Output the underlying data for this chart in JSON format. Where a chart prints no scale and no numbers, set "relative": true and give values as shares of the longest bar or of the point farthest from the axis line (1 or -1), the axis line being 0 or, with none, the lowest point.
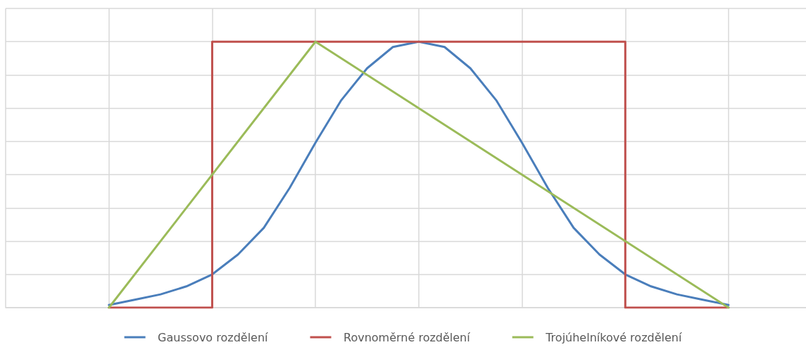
{
  "chart_data": {
    "type": "line",
    "relative": true,
    "grid": true,
    "legend": "bottom",
    "marker": "none",
    "line_style": "solid",
    "categories": [
      null,
      null,
      null,
      null,
      null,
      null,
      null,
      null,
      null,
      null,
      null,
      null,
      null,
      null,
      null,
      null,
      null,
      null,
      null,
      null,
      null,
      null,
      null,
      null,
      null,
      null,
      null,
      null,
      null,
      null,
      null,
      null
    ],
    "series": [
      {
        "name": "Gaussovo rozdělení",
        "color": "#4a7ebb",
        "values": [
          null,
          null,
          null,
          null,
          0.01,
          0.03,
          0.05,
          0.08,
          0.125,
          0.2,
          0.3,
          0.45,
          0.62,
          0.78,
          0.9,
          0.98,
          1,
          0.98,
          0.9,
          0.78,
          0.62,
          0.45,
          0.3,
          0.2,
          0.125,
          0.08,
          0.05,
          0.03,
          0.01,
          null,
          null,
          null
        ]
      },
      {
        "name": "Rovnoměrné rozdělení",
        "type": "step",
        "color": "#c0504d",
        "values": [
          null,
          null,
          null,
          null,
          0,
          0,
          0,
          0,
          0,
          1,
          1,
          1,
          1,
          1,
          1,
          1,
          1,
          1,
          1,
          1,
          1,
          1,
          1,
          1,
          1,
          0,
          0,
          0,
          0,
          null,
          null,
          null
        ]
      },
      {
        "name": "Trojúhelníkové rozdělení",
        "color": "#9bbb59",
        "values": [
          null,
          null,
          null,
          null,
          0,
          null,
          null,
          null,
          null,
          null,
          null,
          null,
          1,
          null,
          null,
          null,
          null,
          null,
          null,
          null,
          null,
          null,
          null,
          null,
          null,
          null,
          null,
          null,
          0,
          null,
          null,
          null
        ]
      }
    ]
  }
}
